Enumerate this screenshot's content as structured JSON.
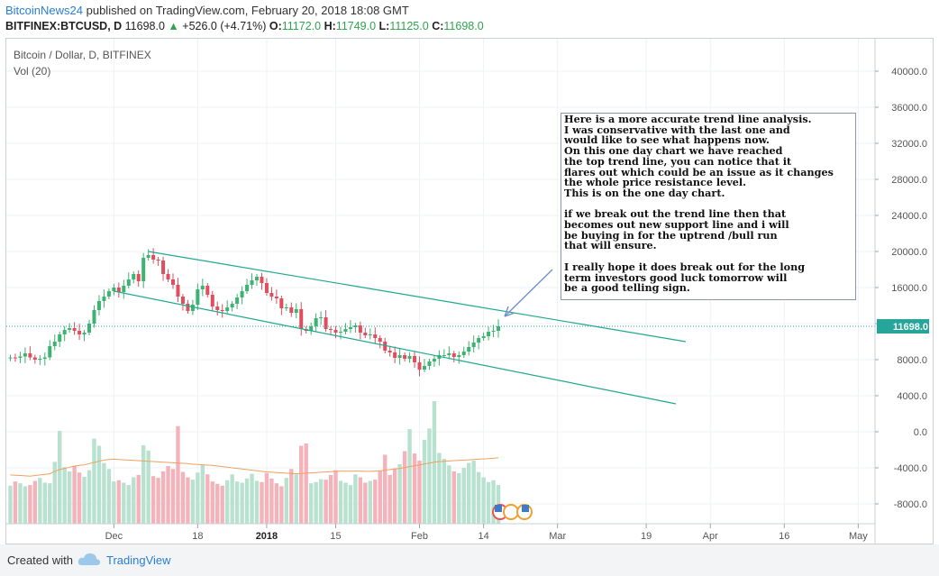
{
  "header": {
    "username": "BitcoinNews24",
    "published_text": " published on TradingView.com, February 20, 2018 18:08 GMT",
    "symbol": "BITFINEX:BTCUSD, D",
    "last": "11698.0",
    "change": "+526.0 (+4.71%)",
    "open_label": "O:",
    "open": "11172.0",
    "high_label": "H:",
    "high": "11749.0",
    "low_label": "L:",
    "low": "11125.0",
    "close_label": "C:",
    "close": "11698.0"
  },
  "legend": {
    "title": "Bitcoin / Dollar, D, BITFINEX",
    "volume": "Vol (20)"
  },
  "annotation": {
    "lines": [
      "Here is a more accurate trend line analysis.",
      "I was conservative with the last one and",
      "would like to see what happens now.",
      "On this one day chart we have reached",
      "the top trend line, you can notice that it",
      "flares out which could be an issue as it changes",
      "the whole price resistance level.",
      "This is on the one day chart.",
      "",
      "if we break out the trend line then that",
      "becomes out new support line and i will",
      "be buying in for the uptrend /bull run",
      "that will ensure.",
      "",
      "I really hope it does break out for the long",
      "term investors good luck tomorrow will",
      "be a good telling sign."
    ]
  },
  "footer": {
    "created_with": "Created with",
    "brand": "TradingView"
  },
  "colors": {
    "up": "#26a69a",
    "down": "#ef5350",
    "up_candle": "#3cb371",
    "down_candle": "#e04d5c",
    "trend": "#20a88f",
    "arrow": "#6b8fc9",
    "vol_ma": "#f0a060",
    "price_line": "#26a69a"
  },
  "chart_data": {
    "type": "candlestick",
    "y_axis_ticks": [
      40000,
      36000,
      32000,
      28000,
      24000,
      20000,
      16000,
      12000,
      8000,
      4000,
      0,
      -4000,
      -8000
    ],
    "y_axis_labels": [
      "40000.0",
      "36000.0",
      "32000.0",
      "28000.0",
      "24000.0",
      "20000.0",
      "16000.0",
      "",
      "8000.0",
      "4000.0",
      "0.0",
      "-4000.0",
      "-8000.0"
    ],
    "last_price_label": "11698.0",
    "last_price": 11698,
    "x_axis_labels": [
      "Dec",
      "18",
      "2018",
      "15",
      "Feb",
      "14",
      "Mar",
      "19",
      "Apr",
      "16",
      "May"
    ],
    "x_axis_dates": [
      "2017-12-01",
      "2017-12-18",
      "2018-01-01",
      "2018-01-15",
      "2018-02-01",
      "2018-02-14",
      "2018-03-01",
      "2018-03-19",
      "2018-04-01",
      "2018-04-16",
      "2018-05-01"
    ],
    "start_date": "2017-11-10",
    "closes": [
      8240,
      8200,
      8350,
      8700,
      8250,
      8000,
      8100,
      8250,
      9500,
      10000,
      10800,
      11300,
      11500,
      11200,
      10800,
      11000,
      12000,
      13500,
      14500,
      15000,
      15600,
      16000,
      15500,
      16200,
      16900,
      17500,
      16700,
      19300,
      19600,
      19100,
      19000,
      17500,
      16900,
      16300,
      15000,
      14200,
      13400,
      14100,
      15800,
      16200,
      15200,
      13900,
      13500,
      13400,
      13800,
      14200,
      14900,
      15600,
      16300,
      16800,
      17200,
      16500,
      15400,
      15000,
      14800,
      13700,
      13800,
      13200,
      13600,
      11400,
      11200,
      11700,
      12600,
      12700,
      11400,
      11300,
      11000,
      11100,
      11400,
      11600,
      11800,
      11000,
      10700,
      10800,
      10400,
      10000,
      9000,
      8800,
      8200,
      8500,
      8100,
      8400,
      7700,
      6900,
      7300,
      7800,
      8100,
      8500,
      8500,
      8700,
      8300,
      8500,
      8900,
      9400,
      9900,
      10400,
      10600,
      11100,
      11200,
      11698
    ],
    "volumes": [
      6400,
      7100,
      6800,
      6300,
      6500,
      7200,
      7700,
      6900,
      6800,
      10400,
      15600,
      9500,
      8800,
      9700,
      8600,
      7900,
      9000,
      14300,
      13100,
      10200,
      9200,
      7100,
      7300,
      6900,
      6500,
      7800,
      8200,
      13200,
      12300,
      8000,
      7700,
      8800,
      9700,
      9200,
      16400,
      8700,
      7800,
      7400,
      8600,
      9900,
      8300,
      7100,
      6700,
      6400,
      7300,
      8300,
      7100,
      6900,
      7600,
      8400,
      7200,
      7000,
      8500,
      7600,
      6800,
      6300,
      7700,
      9200,
      8300,
      13100,
      13500,
      6800,
      7000,
      7500,
      7400,
      8200,
      9000,
      7200,
      6900,
      6500,
      8300,
      7800,
      6900,
      7200,
      7400,
      8900,
      11600,
      8200,
      9300,
      10000,
      12200,
      15900,
      11800,
      10600,
      14100,
      16000,
      20600,
      11900,
      10900,
      9800,
      8800,
      8500,
      9400,
      10200,
      10600,
      8700,
      7800,
      7000,
      7300,
      6500
    ],
    "volume_ma": [
      8200,
      8150,
      8100,
      8050,
      8000,
      8100,
      8200,
      8300,
      8400,
      8800,
      9100,
      9300,
      9500,
      9700,
      9800,
      9900,
      10100,
      10300,
      10500,
      10700,
      10800,
      10850,
      10800,
      10750,
      10700,
      10650,
      10600,
      10550,
      10500,
      10450,
      10400,
      10350,
      10300,
      10250,
      10200,
      10150,
      10100,
      10000,
      9950,
      9900,
      9850,
      9800,
      9700,
      9600,
      9500,
      9400,
      9300,
      9200,
      9100,
      9000,
      8900,
      8800,
      8700,
      8650,
      8600,
      8550,
      8500,
      8450,
      8400,
      8450,
      8500,
      8550,
      8600,
      8650,
      8700,
      8750,
      8800,
      8850,
      8850,
      8850,
      8850,
      8850,
      8800,
      8800,
      8850,
      8900,
      9000,
      9100,
      9200,
      9300,
      9450,
      9600,
      9750,
      9900,
      10050,
      10200,
      10350,
      10450,
      10500,
      10550,
      10600,
      10650,
      10700,
      10750,
      10800,
      10850,
      10900,
      10950,
      11000,
      11100
    ],
    "trend_upper": [
      {
        "date": "2017-12-08",
        "price": 20000
      },
      {
        "date": "2018-03-27",
        "price": 10000
      }
    ],
    "trend_lower": [
      {
        "date": "2017-12-01",
        "price": 15600
      },
      {
        "date": "2018-03-25",
        "price": 3100
      }
    ]
  }
}
